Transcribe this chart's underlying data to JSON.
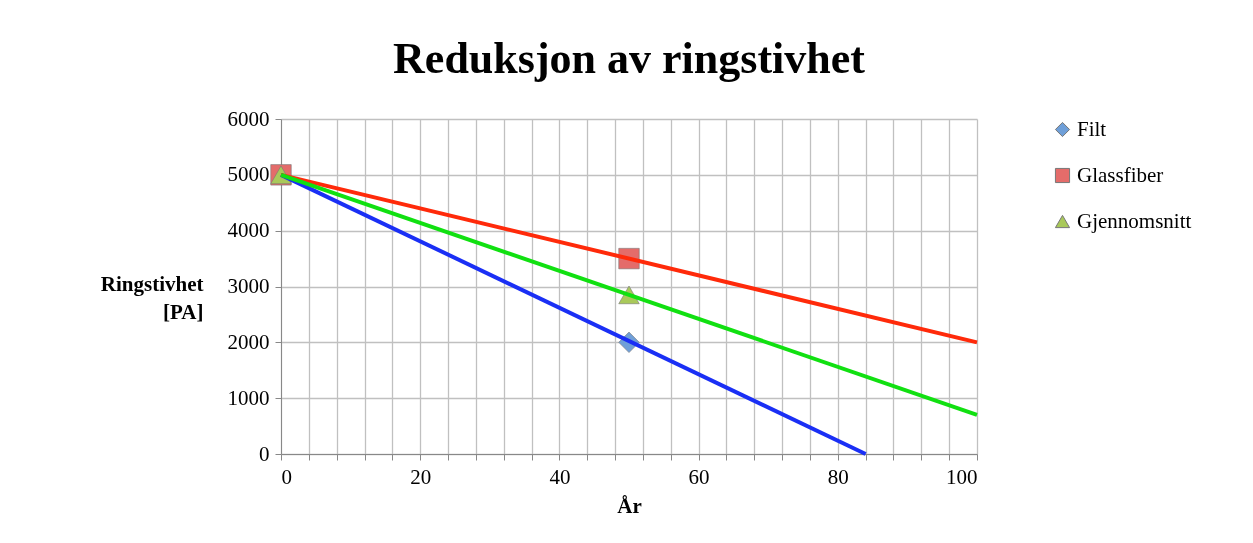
{
  "chart_data": {
    "type": "scatter",
    "title": "Reduksjon av ringstivhet",
    "xlabel": "År",
    "ylabel": "Ringstivhet [PA]",
    "xlim": [
      0,
      100
    ],
    "ylim": [
      0,
      6000
    ],
    "xticks": [
      0,
      {
        "value": 4,
        "label": null
      },
      {
        "value": 8,
        "label": null
      },
      {
        "value": 12,
        "label": null
      },
      {
        "value": 16,
        "label": null
      },
      20,
      {
        "value": 24,
        "label": null
      },
      {
        "value": 28,
        "label": null
      },
      {
        "value": 32,
        "label": null
      },
      {
        "value": 36,
        "label": null
      },
      40,
      {
        "value": 44,
        "label": null
      },
      {
        "value": 48,
        "label": null
      },
      {
        "value": 52,
        "label": null
      },
      {
        "value": 56,
        "label": null
      },
      60,
      {
        "value": 64,
        "label": null
      },
      {
        "value": 68,
        "label": null
      },
      {
        "value": 72,
        "label": null
      },
      {
        "value": 76,
        "label": null
      },
      80,
      {
        "value": 84,
        "label": null
      },
      {
        "value": 88,
        "label": null
      },
      {
        "value": 92,
        "label": null
      },
      {
        "value": 96,
        "label": null
      },
      100
    ],
    "yticks": [
      0,
      1000,
      2000,
      3000,
      4000,
      5000,
      6000
    ],
    "grid": true,
    "legend": "right",
    "series": [
      {
        "name": "Filt",
        "marker": "diamond",
        "color": "#6f9fd8",
        "x": [
          50
        ],
        "values": [
          2000
        ]
      },
      {
        "name": "Glassfiber",
        "marker": "square",
        "color": "#e46c6a",
        "x": [
          0,
          50
        ],
        "values": [
          5000,
          3500
        ]
      },
      {
        "name": "Gjennomsnitt",
        "marker": "triangle",
        "color": "#a9c95a",
        "x": [
          0,
          50
        ],
        "values": [
          5000,
          2850
        ]
      },
      {
        "type": "line",
        "marker": "none",
        "line_style": "solid",
        "color": "#1a2ff5",
        "x": [
          0,
          84
        ],
        "values": [
          5000,
          0
        ]
      },
      {
        "type": "line",
        "marker": "none",
        "line_style": "solid",
        "color": "#ff2a0a",
        "x": [
          0,
          100
        ],
        "values": [
          5000,
          2000
        ]
      },
      {
        "type": "line",
        "marker": "none",
        "line_style": "solid",
        "color": "#11e011",
        "x": [
          0,
          100
        ],
        "values": [
          5000,
          700
        ]
      }
    ]
  }
}
